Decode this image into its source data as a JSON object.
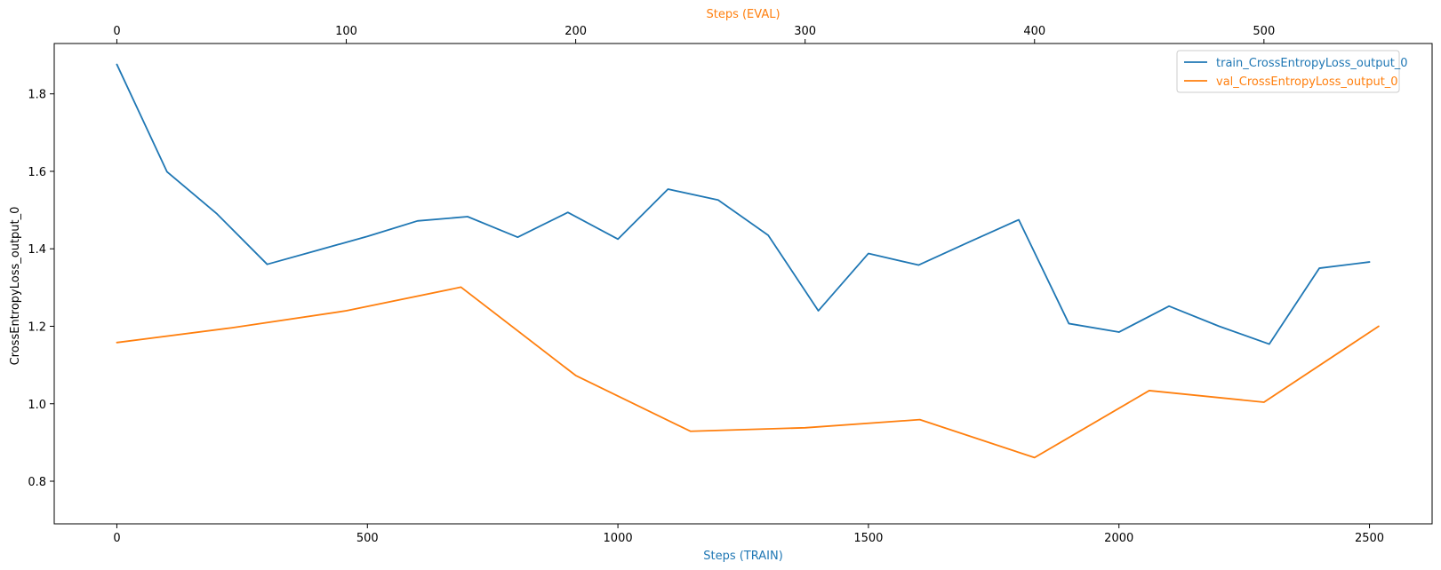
{
  "chart_data": {
    "type": "line",
    "title": "",
    "xlabel": "Steps (TRAIN)",
    "x2label": "Steps (EVAL)",
    "ylabel": "CrossEntropyLoss_output_0",
    "xlim": [
      -125,
      2625
    ],
    "x2lim": [
      -27.3,
      573.3
    ],
    "ylim": [
      0.69,
      1.93
    ],
    "x_ticks": [
      0,
      500,
      1000,
      1500,
      2000,
      2500
    ],
    "x2_ticks": [
      0,
      100,
      200,
      300,
      400,
      500
    ],
    "y_ticks": [
      0.8,
      1.0,
      1.2,
      1.4,
      1.6,
      1.8
    ],
    "legend_position": "top-right",
    "grid": false,
    "colors": {
      "train": "#1f77b4",
      "val": "#ff7f0e",
      "axis": "#000000"
    },
    "series": [
      {
        "name": "train_CrossEntropyLoss_output_0",
        "axis": "bottom",
        "color": "#1f77b4",
        "x": [
          0,
          100,
          200,
          300,
          400,
          500,
          600,
          700,
          800,
          900,
          1000,
          1100,
          1200,
          1300,
          1400,
          1500,
          1600,
          1700,
          1800,
          1900,
          2000,
          2100,
          2200,
          2300,
          2400,
          2500
        ],
        "y": [
          1.876,
          1.599,
          1.49,
          1.36,
          1.396,
          1.432,
          1.472,
          1.483,
          1.43,
          1.494,
          1.425,
          1.554,
          1.526,
          1.435,
          1.24,
          1.388,
          1.358,
          1.417,
          1.475,
          1.207,
          1.185,
          1.252,
          1.2,
          1.154,
          1.35,
          1.366
        ]
      },
      {
        "name": "val_CrossEntropyLoss_output_0",
        "axis": "top",
        "color": "#ff7f0e",
        "x": [
          0,
          50,
          100,
          150,
          200,
          250,
          300,
          350,
          400,
          450,
          500,
          550
        ],
        "y": [
          1.158,
          1.196,
          1.24,
          1.301,
          1.073,
          0.929,
          0.938,
          0.959,
          0.861,
          1.034,
          1.004,
          1.2
        ]
      }
    ]
  }
}
